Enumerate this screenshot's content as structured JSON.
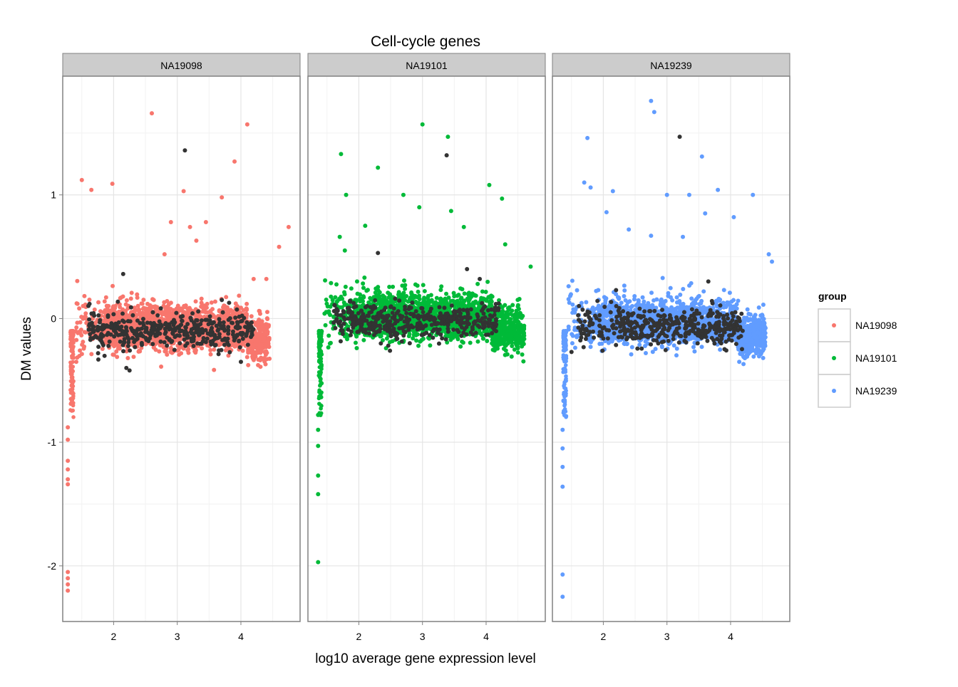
{
  "chart_data": {
    "type": "scatter",
    "title": "Cell-cycle genes",
    "xlabel": "log10 average gene expression level",
    "ylabel": "DM values",
    "xlim": [
      1.2,
      4.93
    ],
    "ylim": [
      -2.45,
      1.96
    ],
    "x_ticks": [
      2,
      3,
      4
    ],
    "y_ticks": [
      1,
      0,
      -1,
      -2
    ],
    "x_tick_labels": [
      "2",
      "3",
      "4"
    ],
    "y_tick_labels": [
      "1",
      "0",
      "-1",
      "-2"
    ],
    "grid": true,
    "legend": {
      "title": "group",
      "position": "right",
      "entries": [
        {
          "label": "NA19098",
          "color": "#F8766D"
        },
        {
          "label": "NA19101",
          "color": "#00BA38"
        },
        {
          "label": "NA19239",
          "color": "#619CFF"
        }
      ]
    },
    "highlight_color": "#333333",
    "facets": [
      {
        "name": "NA19098",
        "color": "#F8766D",
        "cloud": {
          "x_range": [
            1.4,
            4.45
          ],
          "center_y": -0.08,
          "upper_sd": 0.1,
          "lower_sd": 0.08
        },
        "outliers": [
          [
            2.6,
            1.66
          ],
          [
            4.1,
            1.57
          ],
          [
            3.9,
            1.27
          ],
          [
            1.5,
            1.12
          ],
          [
            1.65,
            1.04
          ],
          [
            1.98,
            1.09
          ],
          [
            3.1,
            1.03
          ],
          [
            3.7,
            0.98
          ],
          [
            2.9,
            0.78
          ],
          [
            3.2,
            0.74
          ],
          [
            3.45,
            0.78
          ],
          [
            4.75,
            0.74
          ],
          [
            3.3,
            0.63
          ],
          [
            4.6,
            0.58
          ],
          [
            2.8,
            0.52
          ],
          [
            4.4,
            0.32
          ],
          [
            4.2,
            0.32
          ],
          [
            1.28,
            -0.88
          ],
          [
            1.28,
            -0.98
          ],
          [
            1.28,
            -1.15
          ],
          [
            1.28,
            -1.22
          ],
          [
            1.28,
            -1.3
          ],
          [
            1.28,
            -1.34
          ],
          [
            1.28,
            -2.05
          ],
          [
            1.28,
            -2.1
          ],
          [
            1.28,
            -2.15
          ],
          [
            1.28,
            -2.2
          ]
        ],
        "highlighted": [
          [
            3.12,
            1.36
          ],
          [
            2.15,
            0.36
          ],
          [
            2.2,
            -0.4
          ],
          [
            2.25,
            -0.42
          ],
          [
            3.7,
            0.15
          ],
          [
            4.0,
            -0.35
          ]
        ]
      },
      {
        "name": "NA19101",
        "color": "#00BA38",
        "cloud": {
          "x_range": [
            1.45,
            4.6
          ],
          "center_y": 0.0,
          "upper_sd": 0.1,
          "lower_sd": 0.07
        },
        "outliers": [
          [
            3.0,
            1.57
          ],
          [
            3.4,
            1.47
          ],
          [
            1.72,
            1.33
          ],
          [
            2.3,
            1.22
          ],
          [
            4.05,
            1.08
          ],
          [
            1.8,
            1.0
          ],
          [
            2.7,
            1.0
          ],
          [
            4.25,
            0.97
          ],
          [
            2.95,
            0.9
          ],
          [
            3.45,
            0.87
          ],
          [
            2.1,
            0.75
          ],
          [
            3.65,
            0.74
          ],
          [
            4.3,
            0.6
          ],
          [
            1.7,
            0.66
          ],
          [
            1.78,
            0.55
          ],
          [
            4.7,
            0.42
          ],
          [
            1.38,
            -0.63
          ],
          [
            1.36,
            -0.78
          ],
          [
            1.36,
            -0.9
          ],
          [
            1.36,
            -1.03
          ],
          [
            1.36,
            -1.27
          ],
          [
            1.36,
            -1.42
          ],
          [
            1.36,
            -1.97
          ]
        ],
        "highlighted": [
          [
            3.38,
            1.32
          ],
          [
            2.3,
            0.53
          ],
          [
            3.7,
            0.4
          ],
          [
            3.9,
            0.32
          ],
          [
            2.8,
            -0.2
          ]
        ]
      },
      {
        "name": "NA19239",
        "color": "#619CFF",
        "cloud": {
          "x_range": [
            1.45,
            4.55
          ],
          "center_y": -0.05,
          "upper_sd": 0.1,
          "lower_sd": 0.07
        },
        "outliers": [
          [
            2.75,
            1.76
          ],
          [
            2.8,
            1.67
          ],
          [
            1.75,
            1.46
          ],
          [
            3.55,
            1.31
          ],
          [
            1.7,
            1.1
          ],
          [
            1.8,
            1.06
          ],
          [
            2.15,
            1.03
          ],
          [
            3.0,
            1.0
          ],
          [
            3.35,
            1.0
          ],
          [
            3.8,
            1.04
          ],
          [
            4.35,
            1.0
          ],
          [
            2.05,
            0.86
          ],
          [
            3.6,
            0.85
          ],
          [
            2.4,
            0.72
          ],
          [
            4.05,
            0.82
          ],
          [
            2.75,
            0.67
          ],
          [
            3.25,
            0.66
          ],
          [
            4.6,
            0.52
          ],
          [
            4.65,
            0.46
          ],
          [
            1.38,
            -0.75
          ],
          [
            1.36,
            -0.9
          ],
          [
            1.36,
            -1.05
          ],
          [
            1.36,
            -1.2
          ],
          [
            1.36,
            -1.36
          ],
          [
            1.36,
            -2.07
          ],
          [
            1.36,
            -2.25
          ]
        ],
        "highlighted": [
          [
            3.2,
            1.47
          ],
          [
            2.2,
            0.23
          ],
          [
            3.65,
            0.3
          ],
          [
            1.5,
            -0.27
          ],
          [
            4.1,
            -0.05
          ]
        ]
      }
    ]
  }
}
